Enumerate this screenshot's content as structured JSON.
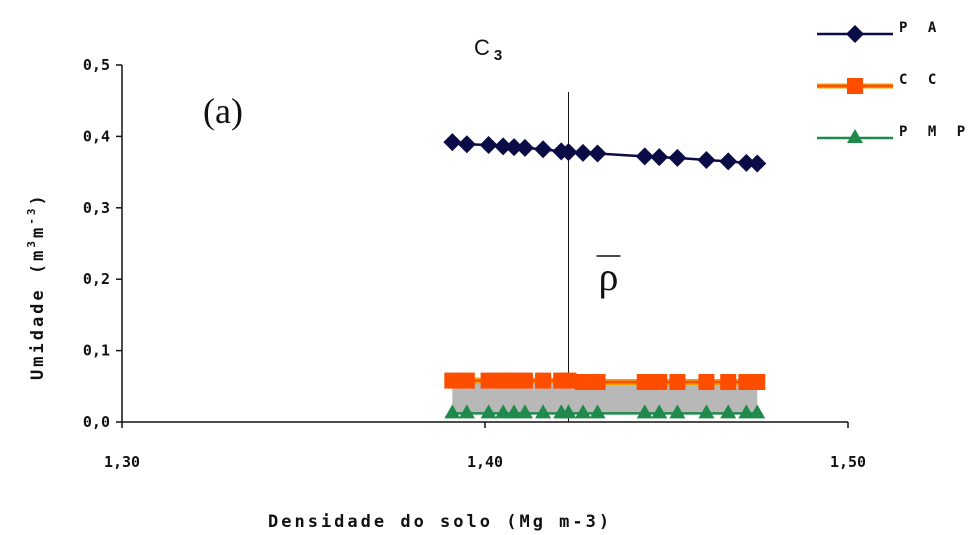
{
  "chart_data": {
    "type": "line",
    "title": "C3",
    "title_main": "C",
    "title_sub": "3",
    "panel_label": "(a)",
    "xlabel": "Densidade do solo (Mg m-3)",
    "ylabel_main": "Umidade (m",
    "ylabel_sup1": "3",
    "ylabel_mid": "m",
    "ylabel_sup2": "-3",
    "ylabel_end": ")",
    "xlim": [
      1.3,
      1.5
    ],
    "ylim": [
      0.0,
      0.5
    ],
    "x_ticks": [
      1.3,
      1.4,
      1.5
    ],
    "x_tick_labels": [
      "1,30",
      "1,40",
      "1,50"
    ],
    "y_ticks": [
      0.0,
      0.1,
      0.2,
      0.3,
      0.4,
      0.5
    ],
    "y_tick_labels": [
      "0,0",
      "0,1",
      "0,2",
      "0,3",
      "0,4",
      "0,5"
    ],
    "mean_line": {
      "x": 1.423,
      "label": "ρ"
    },
    "legend_position": "top-right",
    "series": [
      {
        "name": "P A",
        "color": "#0b0b45",
        "marker": "diamond",
        "x": [
          1.391,
          1.395,
          1.401,
          1.405,
          1.408,
          1.411,
          1.416,
          1.421,
          1.423,
          1.427,
          1.431,
          1.444,
          1.448,
          1.453,
          1.461,
          1.467,
          1.472,
          1.475
        ],
        "values": [
          0.392,
          0.389,
          0.388,
          0.386,
          0.385,
          0.384,
          0.382,
          0.379,
          0.378,
          0.377,
          0.376,
          0.372,
          0.371,
          0.37,
          0.367,
          0.365,
          0.363,
          0.362
        ]
      },
      {
        "name": "C C",
        "color": "#ff4d00",
        "marker": "square",
        "x": [
          1.391,
          1.395,
          1.401,
          1.405,
          1.408,
          1.411,
          1.416,
          1.421,
          1.423,
          1.427,
          1.431,
          1.444,
          1.448,
          1.453,
          1.461,
          1.467,
          1.472,
          1.475
        ],
        "values": [
          0.058,
          0.058,
          0.058,
          0.058,
          0.058,
          0.058,
          0.058,
          0.058,
          0.058,
          0.056,
          0.056,
          0.056,
          0.056,
          0.056,
          0.056,
          0.056,
          0.056,
          0.056
        ]
      },
      {
        "name": "P M P",
        "color": "#1f8a4c",
        "marker": "triangle",
        "x": [
          1.391,
          1.395,
          1.401,
          1.405,
          1.408,
          1.411,
          1.416,
          1.421,
          1.423,
          1.427,
          1.431,
          1.444,
          1.448,
          1.453,
          1.461,
          1.467,
          1.472,
          1.475
        ],
        "values": [
          0.012,
          0.012,
          0.012,
          0.012,
          0.012,
          0.012,
          0.012,
          0.012,
          0.012,
          0.012,
          0.012,
          0.012,
          0.012,
          0.012,
          0.012,
          0.012,
          0.012,
          0.012
        ]
      }
    ]
  }
}
